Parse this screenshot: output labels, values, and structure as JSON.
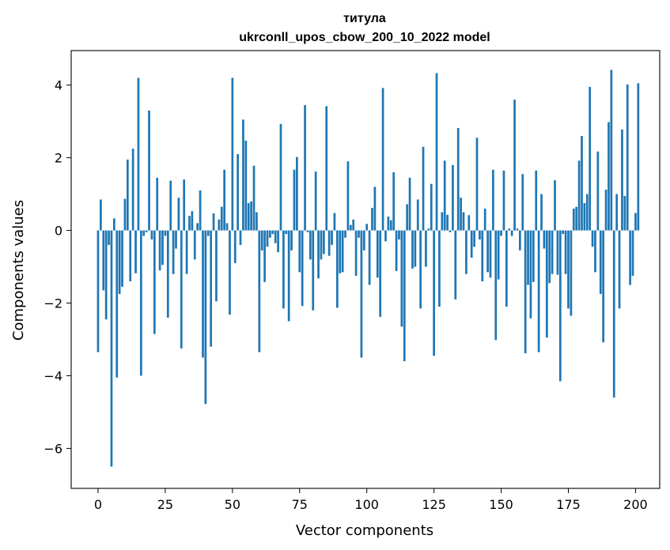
{
  "chart_data": {
    "type": "bar",
    "title_line1": "титула",
    "title_line2": "ukrconll_upos_cbow_200_10_2022 model",
    "xlabel": "Vector components",
    "ylabel": "Components values",
    "xlim": [
      -10,
      209
    ],
    "ylim": [
      -7.1,
      4.95
    ],
    "x_ticks": [
      0,
      25,
      50,
      75,
      100,
      125,
      150,
      175,
      200
    ],
    "y_ticks": [
      -6,
      -4,
      -2,
      0,
      2,
      4
    ],
    "bar_color": "#1f77b4",
    "values": [
      -3.35,
      0.85,
      -1.65,
      -2.45,
      -0.4,
      -6.5,
      0.33,
      -4.05,
      -1.75,
      -1.55,
      0.87,
      1.95,
      -1.4,
      2.25,
      -1.18,
      4.2,
      -4.0,
      -0.15,
      -0.05,
      3.3,
      -0.25,
      -2.85,
      1.45,
      -1.1,
      -0.95,
      -0.15,
      -2.4,
      1.37,
      -1.2,
      -0.5,
      0.9,
      -3.25,
      1.4,
      -1.2,
      0.4,
      0.53,
      -0.8,
      0.2,
      1.1,
      -3.5,
      -4.78,
      -0.15,
      -3.2,
      0.47,
      -1.95,
      0.3,
      0.65,
      1.67,
      0.2,
      -2.32,
      4.2,
      -0.9,
      2.1,
      -0.4,
      3.05,
      2.47,
      0.75,
      0.8,
      1.78,
      0.5,
      -3.35,
      -0.55,
      -1.42,
      -0.45,
      -0.2,
      -0.1,
      -0.35,
      -0.6,
      2.93,
      -2.15,
      -0.1,
      -2.5,
      -0.55,
      1.67,
      2.02,
      -1.15,
      -2.08,
      3.45,
      -0.05,
      -0.8,
      -2.2,
      1.62,
      -1.32,
      -0.8,
      -0.65,
      3.42,
      -0.7,
      -0.4,
      0.48,
      -2.13,
      -1.18,
      -1.15,
      -0.2,
      1.9,
      0.15,
      0.3,
      -1.25,
      -0.2,
      -3.5,
      -0.55,
      0.18,
      -1.5,
      0.62,
      1.2,
      -1.3,
      -2.38,
      3.92,
      -0.3,
      0.38,
      0.28,
      1.6,
      -1.12,
      -0.25,
      -2.65,
      -3.6,
      0.72,
      1.45,
      -1.05,
      -1.0,
      0.85,
      -2.15,
      2.3,
      -1.0,
      0.05,
      1.28,
      -3.45,
      4.33,
      -2.1,
      0.5,
      1.92,
      0.43,
      -0.05,
      1.8,
      -1.9,
      2.82,
      0.9,
      0.5,
      -1.2,
      0.42,
      -0.75,
      -0.45,
      2.55,
      -0.25,
      -1.4,
      0.6,
      -1.15,
      -1.3,
      1.67,
      -3.02,
      -1.35,
      -0.15,
      1.65,
      -2.1,
      0.05,
      -0.15,
      3.6,
      0.05,
      -0.55,
      1.55,
      -3.38,
      -1.5,
      -2.42,
      -1.42,
      1.65,
      -3.35,
      1.0,
      -0.5,
      -2.95,
      -1.45,
      -1.2,
      1.38,
      -1.22,
      -4.15,
      -0.1,
      -1.2,
      -2.15,
      -2.35,
      0.6,
      0.65,
      1.92,
      2.6,
      0.75,
      1.0,
      3.95,
      -0.45,
      -1.15,
      2.17,
      -1.75,
      -3.08,
      1.12,
      2.98,
      4.42,
      -4.6,
      1.0,
      -2.15,
      2.78,
      0.95,
      4.02,
      -1.5,
      -1.25,
      0.48,
      4.05
    ]
  }
}
